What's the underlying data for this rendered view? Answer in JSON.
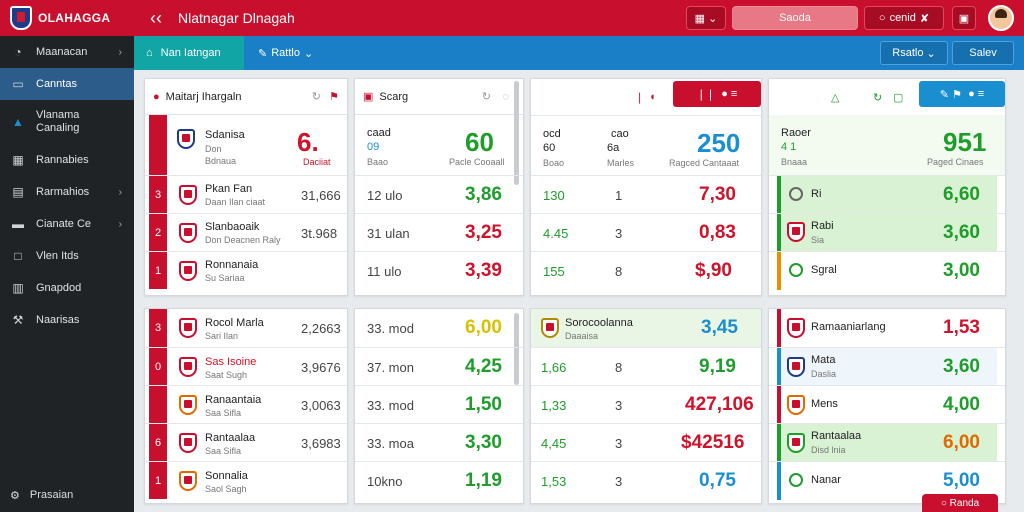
{
  "topbar": {
    "logo_text": "OLAHAGGA",
    "back_icon": "arrow-left-icon",
    "title": "Nlatnagar Dlnagah",
    "calendar_icon": "calendar-icon",
    "search_label": "Saoda",
    "action_label": "cenid",
    "action_icon": "tag-icon",
    "print_icon": "clipboard-icon",
    "accent": "#c8102e"
  },
  "sidebar": {
    "items": [
      {
        "label": "Maanacan",
        "icon": "gauge-icon"
      },
      {
        "label": "Canntas",
        "icon": "monitor-icon"
      },
      {
        "label": "Vlanama\nCanaling",
        "icon": "drop-icon"
      },
      {
        "label": "Rannabies",
        "icon": "calendar-icon"
      },
      {
        "label": "Rarmahios",
        "icon": "dashboard-icon"
      },
      {
        "label": "Cianate Ce",
        "icon": "car-icon"
      },
      {
        "label": "Vlen Itds",
        "icon": "display-icon"
      },
      {
        "label": "Gnapdod",
        "icon": "chart-icon"
      },
      {
        "label": "Naarisas",
        "icon": "wrench-icon"
      }
    ],
    "footer": "Prasaian"
  },
  "subbar": {
    "active_tab": "Nan Iatngan",
    "tab2": "Rattlo",
    "btn1": "Rsatlo",
    "btn2": "Salev"
  },
  "panels": {
    "p1": {
      "title": "Maitarj Ihargaln",
      "header": {
        "name": "Sdanisa",
        "sub1": "Don",
        "sub2": "Bdnaua",
        "big": "6.",
        "big_sub": "Daciiat"
      },
      "rows": [
        {
          "rank": "3",
          "name": "Pkan Fan",
          "sub": "Daan Ilan ciaat",
          "val": "31,666"
        },
        {
          "rank": "2",
          "name": "Slanbaoaik",
          "sub": "Don Deacnen Raly",
          "val": "3t.968"
        },
        {
          "rank": "1",
          "name": "Ronnanaia",
          "sub": "Su Sariaa",
          "val": ""
        }
      ]
    },
    "p2": {
      "title": "Scarg",
      "header": {
        "l1": "caad",
        "l2": "09",
        "l3": "Baao",
        "big": "60",
        "big_sub": "Pacle Cooaall"
      },
      "rows": [
        {
          "a": "12 ulo",
          "v": "3,86"
        },
        {
          "a": "31 ulan",
          "v": "3,25"
        },
        {
          "a": "11 ulo",
          "v": "3,39"
        }
      ]
    },
    "p3": {
      "pill": "",
      "header": {
        "l1": "ocd",
        "l2": "60",
        "l3": "Boao",
        "m1": "cao",
        "m2": "6a",
        "m3": "Marles",
        "big": "250",
        "big_sub": "Ragced Cantaaat"
      },
      "rows": [
        {
          "a": "130",
          "b": "1",
          "v": "7,30"
        },
        {
          "a": "4.45",
          "b": "3",
          "v": "0,83"
        },
        {
          "a": "155",
          "b": "8",
          "v": "$,90"
        }
      ]
    },
    "p4": {
      "header": {
        "l1": "Raoer",
        "l2": "4 1",
        "l3": "Bnaaa",
        "big": "951",
        "big_sub": "Paged Cinaes"
      },
      "rows": [
        {
          "name": "Ri",
          "sub": "",
          "v": "6,60"
        },
        {
          "name": "Rabi",
          "sub": "Sia",
          "v": "3,60"
        },
        {
          "name": "Sgral",
          "sub": "",
          "v": "3,00"
        }
      ]
    },
    "p5": {
      "rows": [
        {
          "rank": "3",
          "name": "Rocol Marla",
          "sub": "Sari Ilan",
          "val": "2,2663"
        },
        {
          "rank": "0",
          "name": "Sas Isoine",
          "sub": "Saat Sugh",
          "val": "3,9676"
        },
        {
          "rank": "",
          "name": "Ranaantaia",
          "sub": "Saa Sifla",
          "val": "3,0063"
        },
        {
          "rank": "6",
          "name": "Rantaalaa",
          "sub": "Saa Sifla",
          "val": "3,6983"
        },
        {
          "rank": "1",
          "name": "Sonnalia",
          "sub": "Saol Sagh",
          "val": ""
        }
      ]
    },
    "p6": {
      "rows": [
        {
          "a": "33. mod",
          "v": "6,00",
          "c": "yellow"
        },
        {
          "a": "37. mon",
          "v": "4,25",
          "c": "green"
        },
        {
          "a": "33. mod",
          "v": "1,50",
          "c": "green"
        },
        {
          "a": "33. moa",
          "v": "3,30",
          "c": "green"
        },
        {
          "a": "10kno",
          "v": "1,19",
          "c": "green"
        }
      ]
    },
    "p7": {
      "header": {
        "name": "Sorocoolanna",
        "sub": "Daaaisa",
        "v": "3,45"
      },
      "rows": [
        {
          "a": "1,66",
          "b": "8",
          "v": "9,19",
          "c": "green"
        },
        {
          "a": "1,33",
          "b": "3",
          "v": "427,106",
          "c": "red"
        },
        {
          "a": "4,45",
          "b": "3",
          "v": "$42516",
          "c": "red"
        },
        {
          "a": "1,53",
          "b": "3",
          "v": "0,75",
          "c": "blue"
        }
      ]
    },
    "p8": {
      "rows": [
        {
          "name": "Ramaaniarlang",
          "sub": "",
          "v": "1,53",
          "c": "red"
        },
        {
          "name": "Mata",
          "sub": "Daslia",
          "v": "3,60",
          "c": "green"
        },
        {
          "name": "Mens",
          "sub": "",
          "v": "4,00",
          "c": "green"
        },
        {
          "name": "Rantaalaa",
          "sub": "Disd lnia",
          "v": "6,00",
          "c": "orange"
        },
        {
          "name": "Nanar",
          "sub": "",
          "v": "5,00",
          "c": "blue"
        }
      ],
      "corner_btn": "Randa"
    }
  }
}
